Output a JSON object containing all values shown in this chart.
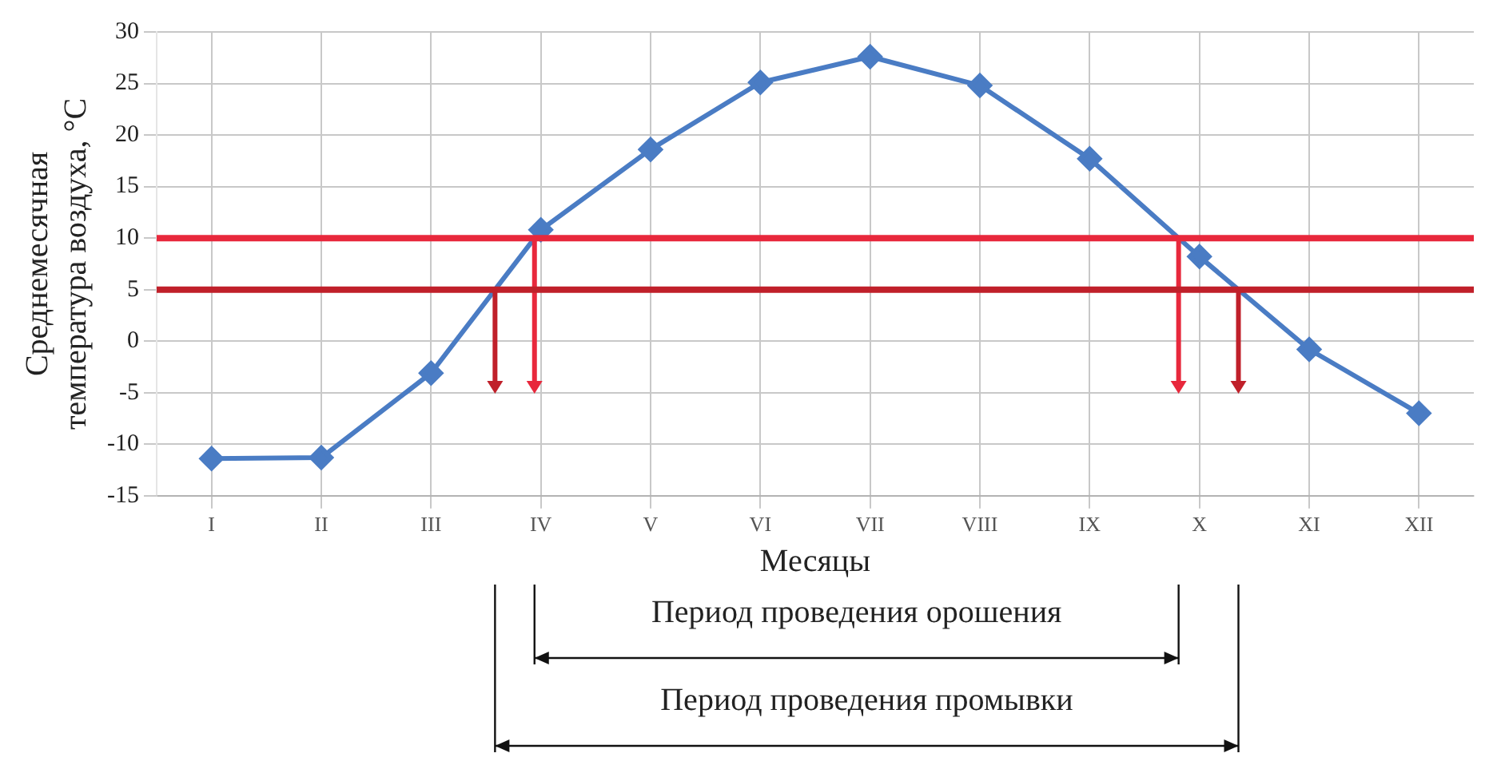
{
  "chart_data": {
    "type": "line",
    "xlabel": "Месяцы",
    "ylabel": "Среднемесячная температура воздуха, °C",
    "categories": [
      "I",
      "II",
      "III",
      "IV",
      "V",
      "VI",
      "VII",
      "VIII",
      "IX",
      "X",
      "XI",
      "XII"
    ],
    "series": [
      {
        "color": "#4a7cc4",
        "values": [
          -11.4,
          -11.3,
          -3.1,
          10.8,
          18.6,
          25.1,
          27.6,
          24.8,
          17.7,
          8.2,
          -0.8,
          -7.0
        ]
      }
    ],
    "ylim": [
      -15,
      30
    ],
    "yticks": [
      -15,
      -10,
      -5,
      0,
      5,
      10,
      15,
      20,
      25,
      30
    ],
    "grid": true,
    "legend": false,
    "marker": "diamond",
    "line_style": "solid",
    "ref_lines": [
      {
        "axis": "y",
        "value": 10,
        "color": "#e8283c"
      },
      {
        "axis": "y",
        "value": 5,
        "color": "#c0202a"
      }
    ],
    "annotations": [
      "Период проведения орошения",
      "Период проведения промывки"
    ]
  }
}
